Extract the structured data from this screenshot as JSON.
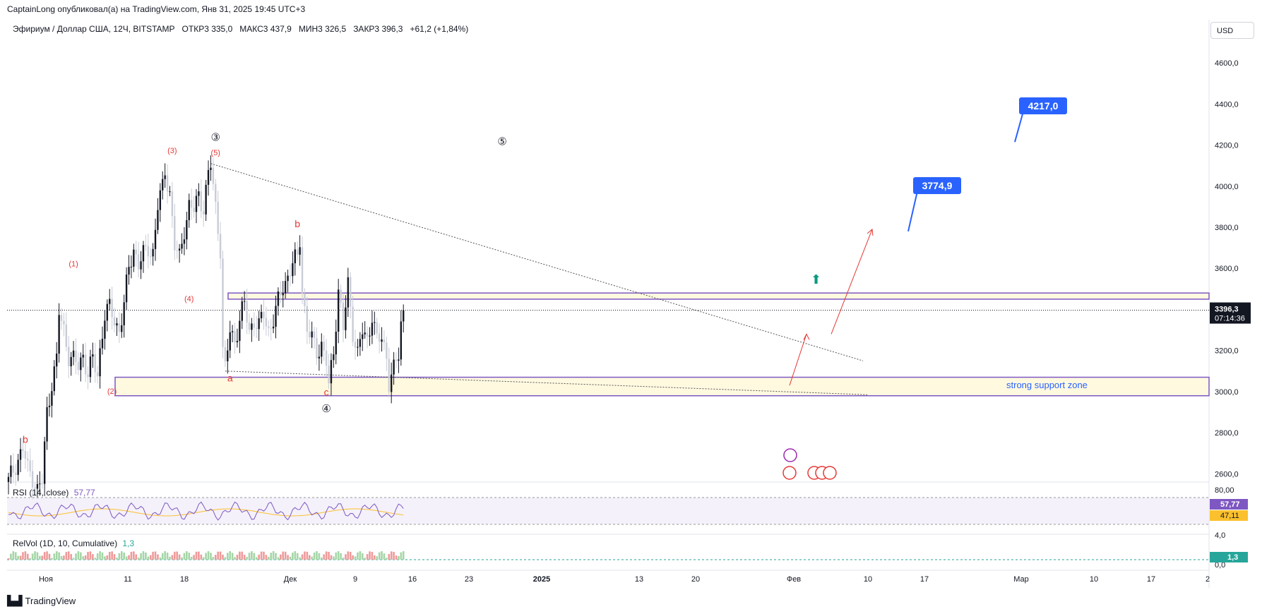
{
  "header": {
    "text": "CaptainLong опубликовал(а) на TradingView.com, Янв 31, 2025 19:45 UTC+3"
  },
  "legend": {
    "symbol": "Эфириум / Доллар США, 12Ч, BITSTAMP",
    "open": "ОТКР3 335,0",
    "high": "МАКС3 437,9",
    "low": "МИН3 326,5",
    "close": "ЗАКР3 396,3",
    "change": "+61,2 (+1,84%)"
  },
  "currency": "USD",
  "price_axis": {
    "ticks": [
      "4600,0",
      "4400,0",
      "4200,0",
      "4000,0",
      "3800,0",
      "3600,0",
      "3400,0",
      "3200,0",
      "3000,0",
      "2800,0",
      "2600,0"
    ],
    "tick_values": [
      4600,
      4400,
      4200,
      4000,
      3800,
      3600,
      3400,
      3200,
      3000,
      2800,
      2600
    ]
  },
  "last_price": {
    "value": "3396,3",
    "countdown": "07:14:36"
  },
  "time_axis": [
    "Ноя",
    "11",
    "18",
    "Дек",
    "9",
    "16",
    "23",
    "2025",
    "13",
    "20",
    "Фев",
    "10",
    "17",
    "Мар",
    "10",
    "17",
    "2"
  ],
  "targets": [
    {
      "label": "4217,0",
      "color": "#2962ff"
    },
    {
      "label": "3774,9",
      "color": "#2962ff"
    }
  ],
  "annotations": {
    "wave_labels": [
      "b",
      "(1)",
      "(2)",
      "(3)",
      "(4)",
      "(5)",
      "③",
      "a",
      "b",
      "c",
      "④",
      "⑤"
    ],
    "support_text": "strong support zone"
  },
  "rsi": {
    "label": "RSI (14, close)",
    "value": "57,77",
    "ma_value": "47,11",
    "axis": [
      "80,00"
    ]
  },
  "relvol": {
    "label": "RelVol (1D, 10, Cumulative)",
    "value": "1,3",
    "axis": [
      "4,0",
      "0,0"
    ]
  },
  "branding": {
    "logo_text": "TradingView"
  },
  "colors": {
    "up": "#131722",
    "down": "#c8ccd6",
    "accent": "#2962ff",
    "wave": "#e53935",
    "zone": "#7e57c2",
    "rsi_line": "#7e57c2",
    "rsi_ma": "#fbc02d",
    "relvol_up": "#a5d6a7",
    "relvol_down": "#ef9a9a"
  },
  "chart_data": {
    "type": "candlestick",
    "title": "Эфириум / Доллар США, 12Ч, BITSTAMP",
    "y_range": [
      2560,
      4700
    ],
    "x_labels": [
      "Ноя",
      "11",
      "18",
      "Дек",
      "9",
      "16",
      "23",
      "2025",
      "13",
      "20",
      "Фев"
    ],
    "close_path": [
      [
        0,
        2560
      ],
      [
        3,
        2650
      ],
      [
        6,
        2720
      ],
      [
        8,
        2620
      ],
      [
        10,
        2590
      ],
      [
        12,
        2520
      ],
      [
        14,
        2560
      ],
      [
        16,
        2900
      ],
      [
        18,
        3050
      ],
      [
        20,
        3150
      ],
      [
        21,
        3380
      ],
      [
        23,
        3300
      ],
      [
        25,
        3180
      ],
      [
        27,
        3150
      ],
      [
        29,
        3120
      ],
      [
        31,
        3180
      ],
      [
        33,
        3090
      ],
      [
        35,
        3150
      ],
      [
        37,
        3080
      ],
      [
        38,
        3200
      ],
      [
        40,
        3380
      ],
      [
        42,
        3400
      ],
      [
        44,
        3350
      ],
      [
        46,
        3300
      ],
      [
        48,
        3420
      ],
      [
        50,
        3600
      ],
      [
        52,
        3700
      ],
      [
        54,
        3620
      ],
      [
        56,
        3660
      ],
      [
        58,
        3700
      ],
      [
        60,
        3680
      ],
      [
        62,
        3900
      ],
      [
        64,
        3990
      ],
      [
        65,
        4080
      ],
      [
        67,
        3970
      ],
      [
        69,
        3700
      ],
      [
        71,
        3650
      ],
      [
        73,
        3800
      ],
      [
        75,
        3900
      ],
      [
        77,
        3880
      ],
      [
        79,
        3960
      ],
      [
        81,
        3900
      ],
      [
        83,
        4050
      ],
      [
        84,
        4100
      ],
      [
        86,
        3900
      ],
      [
        88,
        3700
      ],
      [
        89,
        3200
      ],
      [
        90,
        3100
      ],
      [
        92,
        3300
      ],
      [
        94,
        3250
      ],
      [
        96,
        3350
      ],
      [
        98,
        3420
      ],
      [
        100,
        3300
      ],
      [
        102,
        3350
      ],
      [
        104,
        3310
      ],
      [
        106,
        3380
      ],
      [
        108,
        3300
      ],
      [
        110,
        3350
      ],
      [
        112,
        3430
      ],
      [
        114,
        3520
      ],
      [
        116,
        3560
      ],
      [
        118,
        3620
      ],
      [
        120,
        3650
      ],
      [
        121,
        3750
      ],
      [
        122,
        3500
      ],
      [
        124,
        3300
      ],
      [
        126,
        3250
      ],
      [
        128,
        3200
      ],
      [
        130,
        3230
      ],
      [
        132,
        3140
      ],
      [
        133,
        3020
      ],
      [
        135,
        3200
      ],
      [
        137,
        3500
      ],
      [
        139,
        3300
      ],
      [
        141,
        3520
      ],
      [
        143,
        3300
      ],
      [
        145,
        3180
      ],
      [
        147,
        3290
      ],
      [
        149,
        3250
      ],
      [
        151,
        3380
      ],
      [
        153,
        3240
      ],
      [
        155,
        3260
      ],
      [
        157,
        3180
      ],
      [
        158,
        3050
      ],
      [
        160,
        3100
      ],
      [
        162,
        3180
      ],
      [
        163,
        3335
      ],
      [
        164,
        3396.3
      ]
    ],
    "annotations": [
      {
        "text": "(1)",
        "x": 27,
        "y": 3610
      },
      {
        "text": "(2)",
        "x": 43,
        "y": 2990
      },
      {
        "text": "(3)",
        "x": 68,
        "y": 4160
      },
      {
        "text": "(4)",
        "x": 75,
        "y": 3440
      },
      {
        "text": "(5)",
        "x": 86,
        "y": 4150
      },
      {
        "text": "③",
        "x": 86,
        "y": 4220
      },
      {
        "text": "a",
        "x": 92,
        "y": 3050
      },
      {
        "text": "b",
        "x": 120,
        "y": 3800
      },
      {
        "text": "c",
        "x": 132,
        "y": 2980
      },
      {
        "text": "④",
        "x": 132,
        "y": 2900
      },
      {
        "text": "⑤",
        "x": 205,
        "y": 4200
      },
      {
        "text": "b",
        "x": 7,
        "y": 2750
      }
    ]
  }
}
